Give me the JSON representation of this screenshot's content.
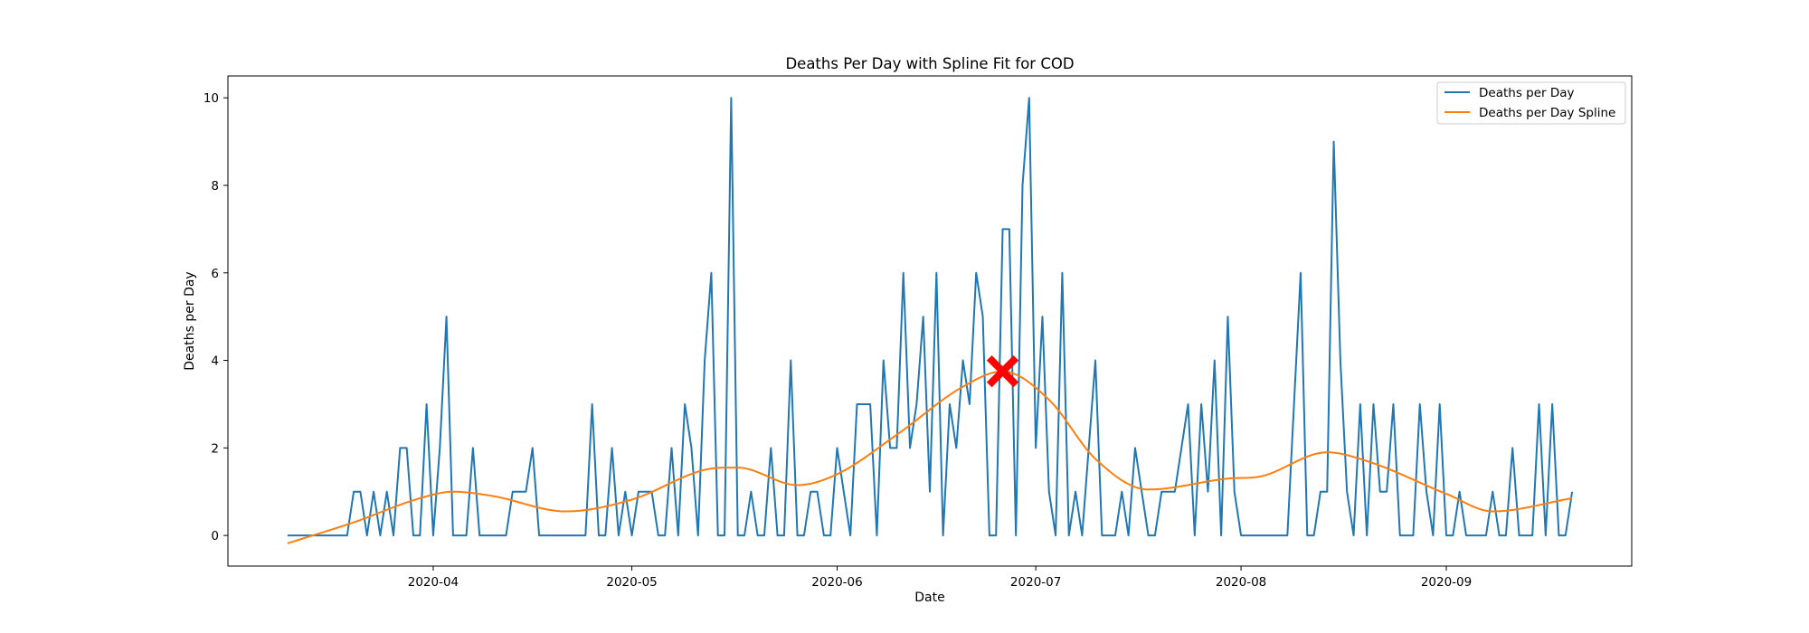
{
  "chart_data": {
    "type": "line",
    "title": "Deaths Per Day with Spline Fit for COD",
    "xlabel": "Date",
    "ylabel": "Deaths per Day",
    "x_axis": {
      "type": "date",
      "start": "2020-03-10",
      "end": "2020-09-20",
      "xlim": [
        "2020-03-01",
        "2020-09-29"
      ],
      "ticks": [
        "2020-04-01",
        "2020-05-01",
        "2020-06-01",
        "2020-07-01",
        "2020-08-01",
        "2020-09-01"
      ],
      "tick_labels": [
        "2020-04",
        "2020-05",
        "2020-06",
        "2020-07",
        "2020-08",
        "2020-09"
      ]
    },
    "y_axis": {
      "ylim": [
        -0.7,
        10.5
      ],
      "ticks": [
        0,
        2,
        4,
        6,
        8,
        10
      ],
      "tick_labels": [
        "0",
        "2",
        "4",
        "6",
        "8",
        "10"
      ]
    },
    "grid": false,
    "legend_placement": "top-right",
    "series": [
      {
        "name": "Deaths per Day",
        "color": "#1f77b4",
        "values": [
          0,
          0,
          0,
          0,
          0,
          0,
          0,
          0,
          0,
          0,
          1,
          1,
          0,
          1,
          0,
          1,
          0,
          2,
          2,
          0,
          0,
          3,
          0,
          2,
          5,
          0,
          0,
          0,
          2,
          0,
          0,
          0,
          0,
          0,
          1,
          1,
          1,
          2,
          0,
          0,
          0,
          0,
          0,
          0,
          0,
          0,
          3,
          0,
          0,
          2,
          0,
          1,
          0,
          1,
          1,
          1,
          0,
          0,
          2,
          0,
          3,
          2,
          0,
          4,
          6,
          0,
          0,
          10,
          0,
          0,
          1,
          0,
          0,
          2,
          0,
          0,
          4,
          0,
          0,
          1,
          1,
          0,
          0,
          2,
          1,
          0,
          3,
          3,
          3,
          0,
          4,
          2,
          2,
          6,
          2,
          3,
          5,
          1,
          6,
          0,
          3,
          2,
          4,
          3,
          6,
          5,
          0,
          0,
          7,
          7,
          0,
          8,
          10,
          2,
          5,
          1,
          0,
          6,
          0,
          1,
          0,
          2,
          4,
          0,
          0,
          0,
          1,
          0,
          2,
          1,
          0,
          0,
          1,
          1,
          1,
          2,
          3,
          0,
          3,
          1,
          4,
          0,
          5,
          1,
          0,
          0,
          0,
          0,
          0,
          0,
          0,
          0,
          3,
          6,
          0,
          0,
          1,
          1,
          9,
          4,
          1,
          0,
          3,
          0,
          3,
          1,
          1,
          3,
          0,
          0,
          0,
          3,
          1,
          0,
          3,
          0,
          0,
          1,
          0,
          0,
          0,
          0,
          1,
          0,
          0,
          2,
          0,
          0,
          0,
          3,
          0,
          3,
          0,
          0,
          1
        ]
      },
      {
        "name": "Deaths per Day Spline",
        "color": "#ff7f0e",
        "knots": [
          [
            "2020-03-10",
            -0.18
          ],
          [
            "2020-03-20",
            0.3
          ],
          [
            "2020-03-30",
            0.85
          ],
          [
            "2020-04-04",
            1.0
          ],
          [
            "2020-04-10",
            0.9
          ],
          [
            "2020-04-21",
            0.55
          ],
          [
            "2020-05-01",
            0.82
          ],
          [
            "2020-05-12",
            1.5
          ],
          [
            "2020-05-17",
            1.55
          ],
          [
            "2020-05-26",
            1.15
          ],
          [
            "2020-06-01",
            1.4
          ],
          [
            "2020-06-10",
            2.3
          ],
          [
            "2020-06-20",
            3.4
          ],
          [
            "2020-06-26",
            3.75
          ],
          [
            "2020-07-03",
            3.1
          ],
          [
            "2020-07-10",
            1.75
          ],
          [
            "2020-07-18",
            1.05
          ],
          [
            "2020-07-30",
            1.3
          ],
          [
            "2020-08-04",
            1.35
          ],
          [
            "2020-08-14",
            1.9
          ],
          [
            "2020-08-20",
            1.7
          ],
          [
            "2020-09-01",
            0.95
          ],
          [
            "2020-09-08",
            0.55
          ],
          [
            "2020-09-20",
            0.85
          ]
        ]
      }
    ],
    "annotations": [
      {
        "type": "marker",
        "shape": "X",
        "color": "#ff0000",
        "x": "2020-06-26",
        "y": 3.75
      }
    ]
  }
}
